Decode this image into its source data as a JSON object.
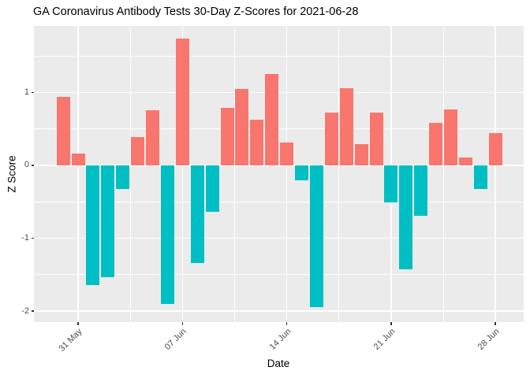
{
  "title": "GA Coronavirus Antibody Tests 30-Day Z-Scores for 2021-06-28",
  "chart_data": {
    "type": "bar",
    "title": "GA Coronavirus Antibody Tests 30-Day Z-Scores for 2021-06-28",
    "xlabel": "Date",
    "ylabel": "Z Score",
    "categories": [
      "30 May",
      "31 May",
      "01 Jun",
      "02 Jun",
      "03 Jun",
      "04 Jun",
      "05 Jun",
      "06 Jun",
      "07 Jun",
      "08 Jun",
      "09 Jun",
      "10 Jun",
      "11 Jun",
      "12 Jun",
      "13 Jun",
      "14 Jun",
      "15 Jun",
      "16 Jun",
      "17 Jun",
      "18 Jun",
      "19 Jun",
      "20 Jun",
      "21 Jun",
      "22 Jun",
      "23 Jun",
      "24 Jun",
      "25 Jun",
      "26 Jun",
      "27 Jun",
      "28 Jun"
    ],
    "values": [
      0.94,
      0.16,
      -1.64,
      -1.53,
      -0.33,
      0.39,
      0.75,
      -1.9,
      1.74,
      -1.34,
      -0.64,
      0.79,
      1.05,
      0.63,
      1.25,
      0.31,
      -0.21,
      -1.95,
      0.72,
      1.06,
      0.29,
      0.72,
      -0.51,
      -1.43,
      -0.69,
      0.58,
      0.77,
      0.11,
      -0.32,
      0.44
    ],
    "x_tick_labels": [
      "31 May",
      "07 Jun",
      "14 Jun",
      "21 Jun",
      "28 Jun"
    ],
    "x_tick_indices": [
      1,
      8,
      15,
      22,
      29
    ],
    "y_tick_labels": [
      "1",
      "0",
      "-1",
      "-2"
    ],
    "y_tick_values": [
      1,
      0,
      -1,
      -2
    ],
    "y_minor_tick_values": [
      1.5,
      0.5,
      -0.5,
      -1.5
    ],
    "ylim": [
      -2.15,
      1.91
    ],
    "grid": "white major and minor gridlines on gray panel",
    "legend_position": "none",
    "colors": {
      "positive_bar": "#F8766D",
      "negative_bar": "#00BFC4",
      "panel_background": "#EBEBEB",
      "gridline": "#FFFFFF",
      "tick_label": "#4D4D4D",
      "axis_tick": "#333333",
      "title_text": "#000000",
      "figure_background": "#FFFFFF"
    }
  }
}
